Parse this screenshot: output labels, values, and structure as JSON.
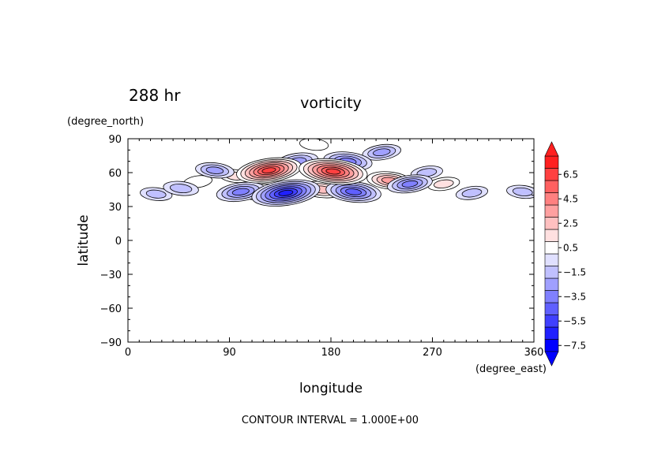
{
  "chart_data": {
    "type": "contour",
    "time_label": "288 hr",
    "title": "vorticity",
    "xlabel": "longitude",
    "ylabel": "latitude",
    "xunit": "(degree_east)",
    "yunit": "(degree_north)",
    "xlim": [
      0,
      360
    ],
    "ylim": [
      -90,
      90
    ],
    "xticks": [
      0,
      90,
      180,
      270,
      360
    ],
    "yticks": [
      90,
      60,
      30,
      0,
      -30,
      -60,
      -90
    ],
    "footer": "CONTOUR INTERVAL = 1.000E+00",
    "contour_interval": 1.0,
    "colorbar": {
      "levels": [
        -8,
        -7,
        -6,
        -5,
        -4,
        -3,
        -2,
        -1,
        0,
        1,
        2,
        3,
        4,
        5,
        6,
        7,
        8
      ],
      "tick_labels": [
        "6.5",
        "4.5",
        "2.5",
        "0.5",
        "−1.5",
        "−3.5",
        "−5.5",
        "−7.5"
      ],
      "colors": [
        "#0000ff",
        "#2020ff",
        "#4040ff",
        "#6060ff",
        "#8080ff",
        "#a0a0ff",
        "#c0c0ff",
        "#e0e0ff",
        "#ffffff",
        "#ffe0e0",
        "#ffc0c0",
        "#ffa0a0",
        "#ff8080",
        "#ff6060",
        "#ff4040",
        "#ff2020"
      ]
    },
    "features": [
      {
        "lon": 125,
        "lat": 62,
        "value": 6.5
      },
      {
        "lon": 182,
        "lat": 61,
        "value": 7.0
      },
      {
        "lon": 232,
        "lat": 53,
        "value": 3.5
      },
      {
        "lon": 118,
        "lat": 43,
        "value": 2.5
      },
      {
        "lon": 172,
        "lat": 45,
        "value": 3.0
      },
      {
        "lon": 95,
        "lat": 57,
        "value": 1.5
      },
      {
        "lon": 165,
        "lat": 85,
        "value": 1.0
      },
      {
        "lon": 280,
        "lat": 50,
        "value": 1.5
      },
      {
        "lon": 62,
        "lat": 52,
        "value": 1.0
      },
      {
        "lon": 140,
        "lat": 42,
        "value": -7.0
      },
      {
        "lon": 200,
        "lat": 43,
        "value": -5.0
      },
      {
        "lon": 195,
        "lat": 70,
        "value": -4.0
      },
      {
        "lon": 150,
        "lat": 70,
        "value": -3.0
      },
      {
        "lon": 250,
        "lat": 50,
        "value": -3.5
      },
      {
        "lon": 100,
        "lat": 43,
        "value": -4.0
      },
      {
        "lon": 77,
        "lat": 62,
        "value": -2.5
      },
      {
        "lon": 47,
        "lat": 46,
        "value": -2.0
      },
      {
        "lon": 25,
        "lat": 41,
        "value": -1.5
      },
      {
        "lon": 305,
        "lat": 42,
        "value": -1.5
      },
      {
        "lon": 350,
        "lat": 43,
        "value": -1.5
      },
      {
        "lon": 225,
        "lat": 78,
        "value": -2.5
      },
      {
        "lon": 265,
        "lat": 60,
        "value": -1.5
      }
    ]
  }
}
